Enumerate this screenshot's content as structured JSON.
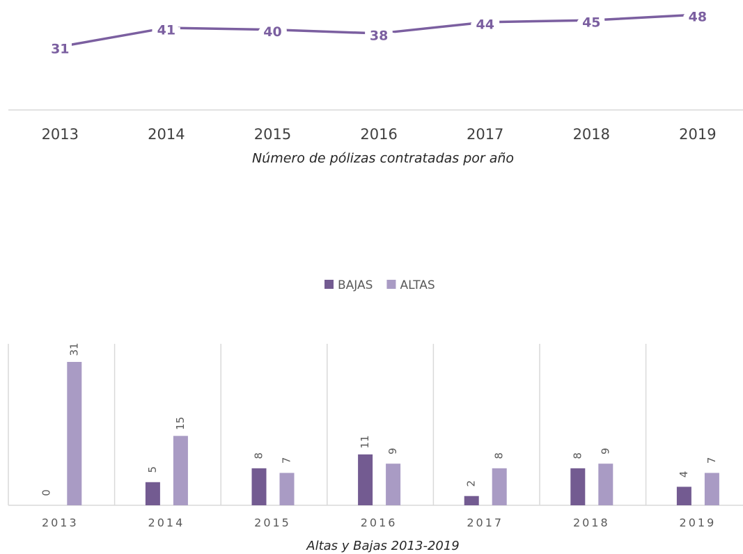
{
  "chart_data": [
    {
      "type": "line",
      "title": "Número de pólizas contratadas por año",
      "categories": [
        "2013",
        "2014",
        "2015",
        "2016",
        "2017",
        "2018",
        "2019"
      ],
      "values": [
        31,
        41,
        40,
        38,
        44,
        45,
        48
      ],
      "color": "#7b5fa0"
    },
    {
      "type": "bar",
      "title": "Altas y Bajas 2013-2019",
      "categories": [
        "2013",
        "2014",
        "2015",
        "2016",
        "2017",
        "2018",
        "2019"
      ],
      "series": [
        {
          "name": "BAJAS",
          "color": "#735b91",
          "values": [
            0,
            5,
            8,
            11,
            2,
            8,
            4
          ]
        },
        {
          "name": "ALTAS",
          "color": "#a99bc4",
          "values": [
            31,
            15,
            7,
            9,
            8,
            9,
            7
          ]
        }
      ],
      "grid": true
    }
  ]
}
